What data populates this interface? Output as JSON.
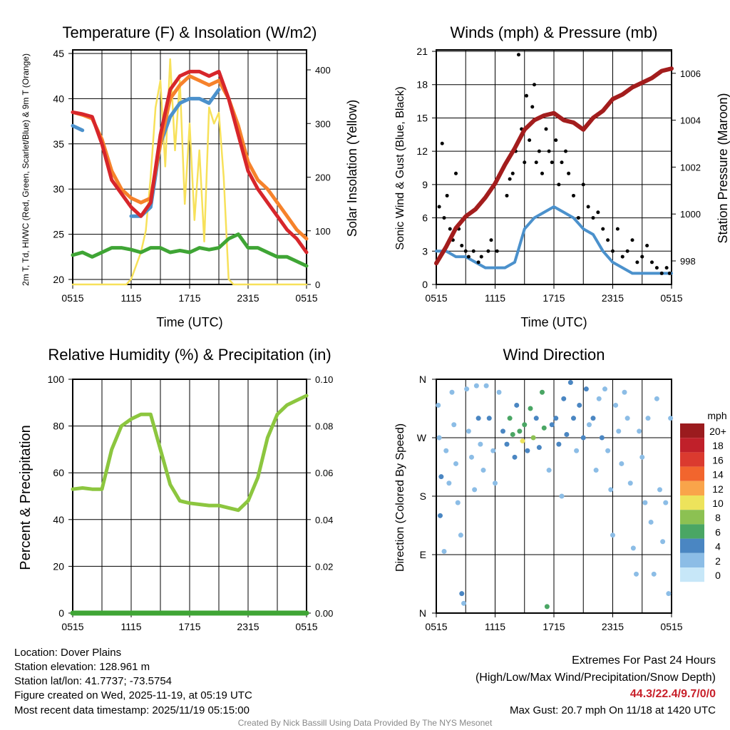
{
  "chart_data": [
    {
      "type": "line",
      "title": "Temperature (F) & Insolation (W/m2)",
      "xlabel": "Time (UTC)",
      "ylabel": "2m T, Td, HI/WC (Red, Green, Scarlet/Blue) & 9m T (Orange)",
      "ylabel_right": "Solar Insolation (Yellow)",
      "xticks": [
        "0515",
        "1115",
        "1715",
        "2315",
        "0515"
      ],
      "ylim": [
        20,
        45
      ],
      "yticks": [
        20,
        25,
        30,
        35,
        40,
        45
      ],
      "ylim_right": [
        0,
        400
      ],
      "yticks_right": [
        0,
        100,
        200,
        300,
        400
      ],
      "x_hours": [
        0,
        1,
        2,
        3,
        4,
        5,
        6,
        7,
        8,
        9,
        10,
        11,
        12,
        13,
        14,
        15,
        16,
        17,
        18,
        19,
        20,
        21,
        22,
        23,
        24
      ],
      "series": [
        {
          "name": "2m T",
          "color": "#d7262b",
          "values": [
            38.5,
            38.3,
            38,
            35,
            31,
            29.5,
            28,
            27,
            28.5,
            36,
            41,
            42.5,
            43,
            43,
            42.5,
            43,
            40,
            36,
            32,
            30,
            28.5,
            27,
            25.5,
            24.5,
            23
          ]
        },
        {
          "name": "9m T",
          "color": "#f6822b",
          "values": [
            38.5,
            38.2,
            37.8,
            35.5,
            32,
            30,
            29,
            28.5,
            29,
            35,
            40,
            41.5,
            42.5,
            42,
            41.5,
            42,
            40,
            37,
            33,
            31,
            30,
            28.5,
            27,
            25.5,
            24.5
          ]
        },
        {
          "name": "HI/WC",
          "color": "#4b91cc",
          "values": [
            37,
            36.5,
            null,
            null,
            null,
            null,
            27,
            27,
            28,
            35,
            38,
            39.5,
            40,
            40,
            39.5,
            41,
            null,
            35,
            null,
            null,
            null,
            null,
            null,
            null,
            null
          ]
        },
        {
          "name": "Td",
          "color": "#3fa535",
          "values": [
            22.7,
            23,
            22.5,
            23,
            23.5,
            23.5,
            23.3,
            23,
            23.5,
            23.5,
            23,
            23.2,
            23,
            23.5,
            23.3,
            23.5,
            24.5,
            25,
            23.5,
            23.5,
            23,
            22.5,
            22.5,
            22,
            21.5
          ]
        }
      ],
      "solar": {
        "name": "Solar Insolation",
        "color": "#f7e15a",
        "points": [
          [
            0,
            0
          ],
          [
            5.5,
            0
          ],
          [
            6,
            10
          ],
          [
            7,
            60
          ],
          [
            7.5,
            100
          ],
          [
            8,
            200
          ],
          [
            8.5,
            330
          ],
          [
            9,
            380
          ],
          [
            9.5,
            220
          ],
          [
            10,
            420
          ],
          [
            10.5,
            250
          ],
          [
            11,
            380
          ],
          [
            11.5,
            150
          ],
          [
            12,
            300
          ],
          [
            12.5,
            120
          ],
          [
            13,
            250
          ],
          [
            13.5,
            80
          ],
          [
            14,
            330
          ],
          [
            14.5,
            300
          ],
          [
            15,
            320
          ],
          [
            15.5,
            200
          ],
          [
            16,
            10
          ],
          [
            16.5,
            0
          ],
          [
            24,
            0
          ]
        ]
      }
    },
    {
      "type": "line+scatter",
      "title": "Winds (mph) & Pressure (mb)",
      "xlabel": "Time (UTC)",
      "ylabel": "Sonic Wind & Gust (Blue, Black)",
      "ylabel_right": "Station Pressure (Maroon)",
      "xticks": [
        "0515",
        "1115",
        "1715",
        "2315",
        "0515"
      ],
      "ylim": [
        0,
        21
      ],
      "yticks": [
        0,
        3,
        6,
        9,
        12,
        15,
        18,
        21
      ],
      "ylim_right": [
        997.3,
        1006.9
      ],
      "yticks_right": [
        998,
        1000,
        1002,
        1004,
        1006
      ],
      "x_hours": [
        0,
        1,
        2,
        3,
        4,
        5,
        6,
        7,
        8,
        9,
        10,
        11,
        12,
        13,
        14,
        15,
        16,
        17,
        18,
        19,
        20,
        21,
        22,
        23,
        24
      ],
      "wind": {
        "color": "#4b91cc",
        "values": [
          3,
          3,
          2.5,
          2.5,
          2,
          1.5,
          1.5,
          1.5,
          2,
          5,
          6,
          6.5,
          7,
          6.5,
          6,
          5,
          4.5,
          3,
          2,
          1.5,
          1,
          1,
          1,
          1,
          1
        ]
      },
      "pressure": {
        "color": "#a31d1d",
        "values": [
          997.9,
          998.6,
          999.4,
          999.9,
          1000.2,
          1000.7,
          1001.3,
          1002.1,
          1002.8,
          1003.6,
          1004,
          1004.2,
          1004.3,
          1004,
          1003.9,
          1003.6,
          1004.1,
          1004.4,
          1004.9,
          1005.1,
          1005.4,
          1005.6,
          1005.8,
          1006.1,
          1006.2
        ]
      },
      "gusts": {
        "color": "#000000",
        "points": [
          [
            0.3,
            7
          ],
          [
            0.6,
            12.7
          ],
          [
            0.8,
            6
          ],
          [
            1.1,
            8
          ],
          [
            1.4,
            5
          ],
          [
            1.7,
            4
          ],
          [
            2,
            10
          ],
          [
            2.3,
            5
          ],
          [
            2.6,
            3.5
          ],
          [
            3,
            3
          ],
          [
            3.3,
            2.5
          ],
          [
            3.8,
            3
          ],
          [
            4.3,
            2
          ],
          [
            4.6,
            2.5
          ],
          [
            5.3,
            3
          ],
          [
            5.6,
            4
          ],
          [
            6.2,
            3
          ],
          [
            7.2,
            8
          ],
          [
            7.5,
            9.5
          ],
          [
            7.8,
            10
          ],
          [
            8.1,
            12
          ],
          [
            8.4,
            20.7
          ],
          [
            8.7,
            14
          ],
          [
            9,
            11
          ],
          [
            9.2,
            17
          ],
          [
            9.5,
            13
          ],
          [
            9.8,
            16
          ],
          [
            10,
            18
          ],
          [
            10.2,
            11
          ],
          [
            10.5,
            12
          ],
          [
            10.8,
            10
          ],
          [
            11.2,
            14
          ],
          [
            11.5,
            12
          ],
          [
            11.8,
            11
          ],
          [
            12.2,
            13
          ],
          [
            12.5,
            9
          ],
          [
            12.8,
            11
          ],
          [
            13.2,
            12
          ],
          [
            13.5,
            10
          ],
          [
            14,
            8
          ],
          [
            14.5,
            6
          ],
          [
            15,
            9
          ],
          [
            15.5,
            7
          ],
          [
            16,
            6
          ],
          [
            16.5,
            6.5
          ],
          [
            17,
            5
          ],
          [
            17.5,
            4
          ],
          [
            18,
            3
          ],
          [
            18.5,
            5
          ],
          [
            19,
            2.5
          ],
          [
            19.5,
            3
          ],
          [
            20,
            4
          ],
          [
            20.5,
            2
          ],
          [
            21,
            2.5
          ],
          [
            21.5,
            3.5
          ],
          [
            22,
            2
          ],
          [
            22.5,
            1.5
          ],
          [
            23,
            1
          ],
          [
            23.5,
            1.5
          ],
          [
            23.8,
            1
          ]
        ]
      }
    },
    {
      "type": "line",
      "title": "Relative Humidity (%) & Precipitation (in)",
      "xlabel": "",
      "ylabel": "Percent & Precipitation",
      "xticks": [
        "0515",
        "1115",
        "1715",
        "2315",
        "0515"
      ],
      "ylim": [
        0,
        100
      ],
      "yticks": [
        0,
        20,
        40,
        60,
        80,
        100
      ],
      "ylim_right": [
        0,
        0.1
      ],
      "yticks_right": [
        "0.00",
        "0.02",
        "0.04",
        "0.06",
        "0.08",
        "0.10"
      ],
      "x_hours": [
        0,
        1,
        2,
        3,
        4,
        5,
        6,
        7,
        8,
        9,
        10,
        11,
        12,
        13,
        14,
        15,
        16,
        17,
        18,
        19,
        20,
        21,
        22,
        23,
        24
      ],
      "rh": {
        "color": "#8cc63f",
        "values": [
          53,
          53.5,
          53,
          53,
          70,
          80,
          83,
          85,
          85,
          70,
          55,
          48,
          47,
          46.5,
          46,
          46,
          45,
          44,
          48,
          58,
          75,
          85,
          89,
          91,
          93
        ]
      },
      "precip": {
        "color": "#3fa535",
        "values": [
          0,
          0,
          0,
          0,
          0,
          0,
          0,
          0,
          0,
          0,
          0,
          0,
          0,
          0,
          0,
          0,
          0,
          0,
          0,
          0,
          0,
          0,
          0,
          0,
          0
        ]
      }
    },
    {
      "type": "scatter",
      "title": "Wind Direction",
      "ylabel": "Direction (Colored By Speed)",
      "xticks": [
        "0515",
        "1115",
        "1715",
        "2315",
        "0515"
      ],
      "yticks": [
        "N",
        "E",
        "S",
        "W",
        "N"
      ],
      "ylim": [
        0,
        360
      ],
      "legend": {
        "title": "mph",
        "labels": [
          "20+",
          "18",
          "16",
          "14",
          "12",
          "10",
          "8",
          "6",
          "4",
          "2",
          "0"
        ],
        "colors": [
          "#9b1b1e",
          "#c0202a",
          "#db3a2f",
          "#f2652d",
          "#f9a44a",
          "#ede35b",
          "#8cc152",
          "#4aa664",
          "#4a86c2",
          "#8cbde6",
          "#c7e7f8"
        ]
      },
      "points": [
        [
          0.2,
          320,
          1
        ],
        [
          0.3,
          270,
          2
        ],
        [
          0.5,
          210,
          3
        ],
        [
          0.4,
          150,
          3
        ],
        [
          0.8,
          95,
          1
        ],
        [
          1,
          250,
          1
        ],
        [
          1.3,
          200,
          1
        ],
        [
          1.6,
          340,
          1
        ],
        [
          1.8,
          290,
          2
        ],
        [
          2,
          230,
          1
        ],
        [
          2.2,
          170,
          2
        ],
        [
          2.5,
          120,
          1
        ],
        [
          2.6,
          30,
          3
        ],
        [
          2.8,
          15,
          1
        ],
        [
          3.1,
          345,
          1
        ],
        [
          3.3,
          280,
          2
        ],
        [
          3.6,
          240,
          2
        ],
        [
          3.9,
          190,
          1
        ],
        [
          4.1,
          350,
          1
        ],
        [
          4.3,
          300,
          3
        ],
        [
          4.5,
          260,
          1
        ],
        [
          4.8,
          220,
          2
        ],
        [
          5.1,
          350,
          2
        ],
        [
          5.4,
          300,
          3
        ],
        [
          5.8,
          250,
          2
        ],
        [
          6,
          200,
          1
        ],
        [
          6.4,
          340,
          1
        ],
        [
          6.8,
          280,
          3
        ],
        [
          7.2,
          260,
          4
        ],
        [
          7.5,
          300,
          5
        ],
        [
          7.8,
          275,
          6
        ],
        [
          8,
          240,
          4
        ],
        [
          8.2,
          320,
          3
        ],
        [
          8.5,
          280,
          5
        ],
        [
          8.8,
          265,
          9
        ],
        [
          9,
          290,
          6
        ],
        [
          9.3,
          250,
          4
        ],
        [
          9.6,
          315,
          5
        ],
        [
          9.9,
          270,
          7
        ],
        [
          10.2,
          300,
          4
        ],
        [
          10.5,
          255,
          3
        ],
        [
          10.8,
          340,
          5
        ],
        [
          11,
          285,
          6
        ],
        [
          11.3,
          10,
          6
        ],
        [
          11.5,
          220,
          2
        ],
        [
          11.8,
          290,
          4
        ],
        [
          12.2,
          300,
          3
        ],
        [
          12.5,
          260,
          4
        ],
        [
          12.8,
          180,
          2
        ],
        [
          13,
          330,
          3
        ],
        [
          13.3,
          275,
          4
        ],
        [
          13.7,
          355,
          3
        ],
        [
          14,
          300,
          3
        ],
        [
          14.3,
          250,
          2
        ],
        [
          14.6,
          320,
          4
        ],
        [
          15,
          270,
          3
        ],
        [
          15.3,
          345,
          4
        ],
        [
          15.6,
          290,
          2
        ],
        [
          16,
          300,
          3
        ],
        [
          16.3,
          220,
          1
        ],
        [
          16.6,
          330,
          2
        ],
        [
          16.9,
          270,
          4
        ],
        [
          17.2,
          345,
          1
        ],
        [
          17.5,
          250,
          1
        ],
        [
          17.8,
          190,
          1
        ],
        [
          18,
          120,
          1
        ],
        [
          18.3,
          320,
          2
        ],
        [
          18.6,
          280,
          2
        ],
        [
          18.9,
          230,
          2
        ],
        [
          19.2,
          340,
          1
        ],
        [
          19.5,
          300,
          2
        ],
        [
          19.8,
          200,
          1
        ],
        [
          20.1,
          100,
          1
        ],
        [
          20.4,
          60,
          2
        ],
        [
          20.7,
          280,
          2
        ],
        [
          21,
          240,
          1
        ],
        [
          21.3,
          170,
          1
        ],
        [
          21.6,
          300,
          2
        ],
        [
          21.9,
          140,
          1
        ],
        [
          22.2,
          60,
          1
        ],
        [
          22.5,
          330,
          1
        ],
        [
          22.8,
          190,
          1
        ],
        [
          23.1,
          110,
          2
        ],
        [
          23.4,
          170,
          1
        ],
        [
          23.7,
          30,
          1
        ],
        [
          23.9,
          300,
          1
        ]
      ]
    }
  ],
  "footer": {
    "location": "Location: Dover Plains",
    "elevation": "Station elevation: 128.961 m",
    "latlon": "Station lat/lon: 41.7737; -73.5754",
    "created": "Figure created on Wed, 2025-11-19, at 05:19 UTC",
    "recent": "Most recent data timestamp: 2025/11/19 05:15:00",
    "extremes_title": "Extremes For Past 24 Hours",
    "extremes_sub": "(High/Low/Max Wind/Precipitation/Snow Depth)",
    "extremes_values": "44.3/22.4/9.7/0/0",
    "max_gust": "Max Gust: 20.7 mph On 11/18 at 1420 UTC",
    "credit": "Created By Nick Bassill Using Data Provided By The NYS Mesonet"
  }
}
